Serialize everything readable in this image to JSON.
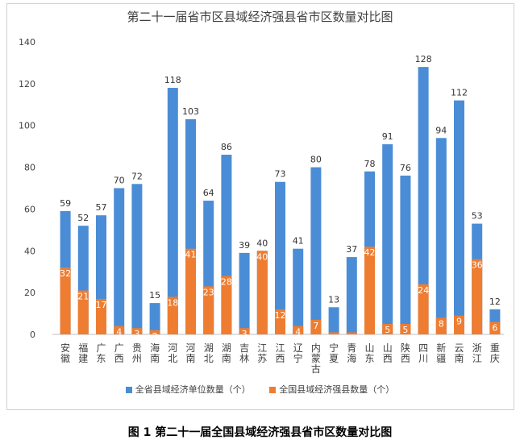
{
  "chart_data": {
    "type": "bar",
    "title": "第二十一届省市区县域经济强县省市区数量对比图",
    "categories": [
      "安徽",
      "福建",
      "广东",
      "广西",
      "贵州",
      "海南",
      "河北",
      "河南",
      "湖北",
      "湖南",
      "吉林",
      "江苏",
      "江西",
      "辽宁",
      "内蒙古",
      "宁夏",
      "青海",
      "山东",
      "山西",
      "陕西",
      "四川",
      "新疆",
      "云南",
      "浙江",
      "重庆"
    ],
    "series": [
      {
        "name": "全省县域经济单位数量（个）",
        "color": "#4a8dd6",
        "values": [
          59,
          52,
          57,
          70,
          72,
          15,
          118,
          103,
          64,
          86,
          39,
          40,
          73,
          41,
          80,
          13,
          37,
          78,
          91,
          76,
          128,
          94,
          112,
          53,
          12
        ]
      },
      {
        "name": "全国县域经济强县数量（个）",
        "color": "#ee7d31",
        "values": [
          32,
          21,
          17,
          4,
          3,
          2,
          18,
          41,
          23,
          28,
          3,
          40,
          12,
          4,
          7,
          1,
          1,
          42,
          5,
          5,
          24,
          8,
          9,
          36,
          6
        ]
      }
    ],
    "ylim": [
      0,
      140
    ],
    "yticks": [
      0,
      20,
      40,
      60,
      80,
      100,
      120,
      140
    ],
    "grid": false,
    "legend": "bottom"
  },
  "caption": "图 1 第二十一届全国县域经济强县省市区数量对比图"
}
